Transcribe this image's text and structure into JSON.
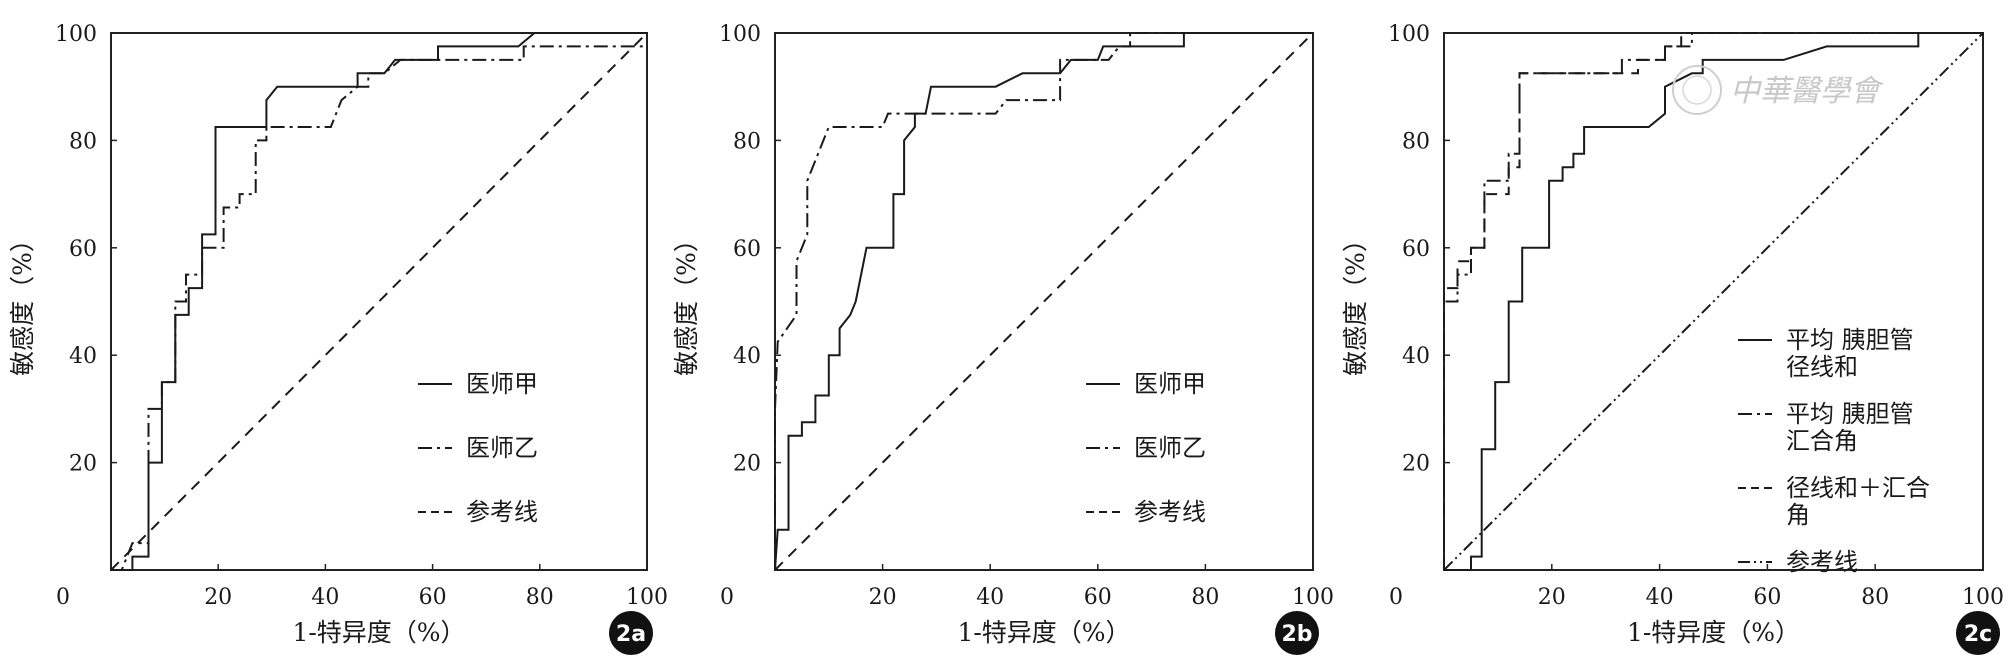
{
  "chart_data": [
    {
      "type": "line",
      "panel_label": "2a",
      "xlabel": "1-特异度（%）",
      "ylabel": "敏感度（%）",
      "xlim": [
        0,
        100
      ],
      "ylim": [
        0,
        100
      ],
      "xticks": [
        "0",
        "20",
        "40",
        "60",
        "80",
        "100"
      ],
      "yticks": [
        "20",
        "40",
        "60",
        "80",
        "100"
      ],
      "grid": false,
      "legend_position": "lower-right",
      "series": [
        {
          "name": "医师甲",
          "style": "solid",
          "points": [
            [
              0,
              0
            ],
            [
              4,
              0
            ],
            [
              4,
              2.5
            ],
            [
              7,
              2.5
            ],
            [
              7,
              20
            ],
            [
              9.5,
              20
            ],
            [
              9.5,
              35
            ],
            [
              12,
              35
            ],
            [
              12,
              47.5
            ],
            [
              14.5,
              47.5
            ],
            [
              14.5,
              52.5
            ],
            [
              17,
              52.5
            ],
            [
              17,
              62.5
            ],
            [
              19.5,
              62.5
            ],
            [
              19.5,
              82.5
            ],
            [
              29,
              82.5
            ],
            [
              29,
              87.5
            ],
            [
              31,
              90
            ],
            [
              43,
              90
            ],
            [
              46,
              90
            ],
            [
              46,
              92.5
            ],
            [
              51,
              92.5
            ],
            [
              53,
              95
            ],
            [
              61,
              95
            ],
            [
              61,
              97.5
            ],
            [
              76,
              97.5
            ],
            [
              79,
              100
            ],
            [
              100,
              100
            ]
          ]
        },
        {
          "name": "医师乙",
          "style": "dashdot",
          "points": [
            [
              0,
              0
            ],
            [
              2,
              0
            ],
            [
              4,
              5
            ],
            [
              7,
              5
            ],
            [
              7,
              30
            ],
            [
              9.5,
              30
            ],
            [
              9.5,
              35
            ],
            [
              12,
              35
            ],
            [
              12,
              50
            ],
            [
              14,
              50
            ],
            [
              14,
              55
            ],
            [
              17,
              55
            ],
            [
              17,
              60
            ],
            [
              21,
              60
            ],
            [
              21,
              67.5
            ],
            [
              24,
              67.5
            ],
            [
              24,
              70
            ],
            [
              27,
              70
            ],
            [
              27,
              80
            ],
            [
              29,
              80
            ],
            [
              29,
              82.5
            ],
            [
              34,
              82.5
            ],
            [
              41,
              82.5
            ],
            [
              43,
              87.5
            ],
            [
              46,
              90
            ],
            [
              48,
              90
            ],
            [
              48,
              92.5
            ],
            [
              51,
              92.5
            ],
            [
              54,
              95
            ],
            [
              65,
              95
            ],
            [
              65,
              95
            ],
            [
              77,
              95
            ],
            [
              77,
              97.5
            ],
            [
              100,
              97.5
            ]
          ]
        },
        {
          "name": "参考线",
          "style": "dashed",
          "points": [
            [
              0,
              0
            ],
            [
              100,
              100
            ]
          ]
        }
      ]
    },
    {
      "type": "line",
      "panel_label": "2b",
      "xlabel": "1-特异度（%）",
      "ylabel": "敏感度（%）",
      "xlim": [
        0,
        100
      ],
      "ylim": [
        0,
        100
      ],
      "xticks": [
        "0",
        "20",
        "40",
        "60",
        "80",
        "100"
      ],
      "yticks": [
        "20",
        "40",
        "60",
        "80",
        "100"
      ],
      "grid": false,
      "legend_position": "lower-right",
      "series": [
        {
          "name": "医师甲",
          "style": "solid",
          "points": [
            [
              0,
              0
            ],
            [
              0.5,
              7.5
            ],
            [
              2.5,
              7.5
            ],
            [
              2.5,
              25
            ],
            [
              5,
              25
            ],
            [
              5,
              27.5
            ],
            [
              7.5,
              27.5
            ],
            [
              7.5,
              32.5
            ],
            [
              10,
              32.5
            ],
            [
              10,
              40
            ],
            [
              12,
              40
            ],
            [
              12,
              45
            ],
            [
              14,
              47.5
            ],
            [
              15,
              50
            ],
            [
              17,
              60
            ],
            [
              22,
              60
            ],
            [
              22,
              70
            ],
            [
              24,
              70
            ],
            [
              24,
              80
            ],
            [
              26,
              82.5
            ],
            [
              26,
              85
            ],
            [
              28,
              85
            ],
            [
              29,
              90
            ],
            [
              41,
              90
            ],
            [
              46,
              92.5
            ],
            [
              53,
              92.5
            ],
            [
              55,
              95
            ],
            [
              60,
              95
            ],
            [
              61,
              97.5
            ],
            [
              76,
              97.5
            ],
            [
              76,
              100
            ],
            [
              100,
              100
            ]
          ]
        },
        {
          "name": "医师乙",
          "style": "dashdot",
          "points": [
            [
              0,
              0
            ],
            [
              0,
              30
            ],
            [
              0.5,
              42.5
            ],
            [
              4,
              47.5
            ],
            [
              4,
              57.5
            ],
            [
              6,
              62.5
            ],
            [
              6,
              72.5
            ],
            [
              9,
              80
            ],
            [
              10,
              82.5
            ],
            [
              20,
              82.5
            ],
            [
              21,
              85
            ],
            [
              28,
              85
            ],
            [
              41,
              85
            ],
            [
              43,
              87.5
            ],
            [
              53,
              87.5
            ],
            [
              53,
              95
            ],
            [
              62,
              95
            ],
            [
              64,
              97.5
            ],
            [
              66,
              97.5
            ],
            [
              66,
              100
            ],
            [
              100,
              100
            ]
          ]
        },
        {
          "name": "参考线",
          "style": "dashed",
          "points": [
            [
              0,
              0
            ],
            [
              100,
              100
            ]
          ]
        }
      ]
    },
    {
      "type": "line",
      "panel_label": "2c",
      "xlabel": "1-特异度（%）",
      "ylabel": "敏感度（%）",
      "xlim": [
        0,
        100
      ],
      "ylim": [
        0,
        100
      ],
      "xticks": [
        "0",
        "20",
        "40",
        "60",
        "80",
        "100"
      ],
      "yticks": [
        "20",
        "40",
        "60",
        "80",
        "100"
      ],
      "grid": false,
      "legend_position": "lower-right",
      "series": [
        {
          "name": "平均  胰胆管径线和",
          "legend_lines": [
            "平均  胰胆管",
            "径线和"
          ],
          "style": "solid",
          "points": [
            [
              0,
              0
            ],
            [
              5,
              0
            ],
            [
              5,
              2.5
            ],
            [
              7,
              2.5
            ],
            [
              7,
              22.5
            ],
            [
              9.5,
              22.5
            ],
            [
              9.5,
              35
            ],
            [
              12,
              35
            ],
            [
              12,
              50
            ],
            [
              14.5,
              50
            ],
            [
              14.5,
              60
            ],
            [
              19.5,
              60
            ],
            [
              19.5,
              72.5
            ],
            [
              22,
              72.5
            ],
            [
              22,
              75
            ],
            [
              24,
              75
            ],
            [
              24,
              77.5
            ],
            [
              26,
              77.5
            ],
            [
              26,
              82.5
            ],
            [
              38,
              82.5
            ],
            [
              41,
              85
            ],
            [
              41,
              90
            ],
            [
              46,
              92.5
            ],
            [
              48,
              92.5
            ],
            [
              48,
              95
            ],
            [
              63,
              95
            ],
            [
              71,
              97.5
            ],
            [
              88,
              97.5
            ],
            [
              88,
              100
            ],
            [
              100,
              100
            ]
          ]
        },
        {
          "name": "平均  胰胆管汇合角",
          "legend_lines": [
            "平均  胰胆管",
            "汇合角"
          ],
          "style": "dashdot",
          "points": [
            [
              0,
              0
            ],
            [
              0,
              50
            ],
            [
              2.5,
              50
            ],
            [
              2.5,
              55
            ],
            [
              5,
              55
            ],
            [
              5,
              60
            ],
            [
              7.5,
              60
            ],
            [
              7.5,
              72.5
            ],
            [
              12,
              72.5
            ],
            [
              12,
              77.5
            ],
            [
              14,
              77.5
            ],
            [
              14,
              92.5
            ],
            [
              33,
              92.5
            ],
            [
              33,
              95
            ],
            [
              41,
              95
            ],
            [
              41,
              97.5
            ],
            [
              46,
              97.5
            ],
            [
              46,
              100
            ],
            [
              100,
              100
            ]
          ]
        },
        {
          "name": "径线和＋汇合角",
          "legend_lines": [
            "径线和＋汇合",
            "角"
          ],
          "style": "dashed",
          "points": [
            [
              0,
              0
            ],
            [
              0,
              52.5
            ],
            [
              2.5,
              52.5
            ],
            [
              2.5,
              57.5
            ],
            [
              5,
              57.5
            ],
            [
              5,
              60
            ],
            [
              7.5,
              60
            ],
            [
              7.5,
              70
            ],
            [
              12,
              70
            ],
            [
              12,
              75
            ],
            [
              14,
              75
            ],
            [
              14,
              92.5
            ],
            [
              36,
              92.5
            ],
            [
              36,
              95
            ],
            [
              41,
              95
            ],
            [
              41,
              97.5
            ],
            [
              44,
              97.5
            ],
            [
              44,
              100
            ],
            [
              100,
              100
            ]
          ]
        },
        {
          "name": "参考线",
          "legend_lines": [
            "参考线"
          ],
          "style": "dashdotdot",
          "points": [
            [
              0,
              0
            ],
            [
              100,
              100
            ]
          ]
        }
      ]
    }
  ],
  "badges": [
    "2a",
    "2b",
    "2c"
  ],
  "watermark": "中華醫學會"
}
